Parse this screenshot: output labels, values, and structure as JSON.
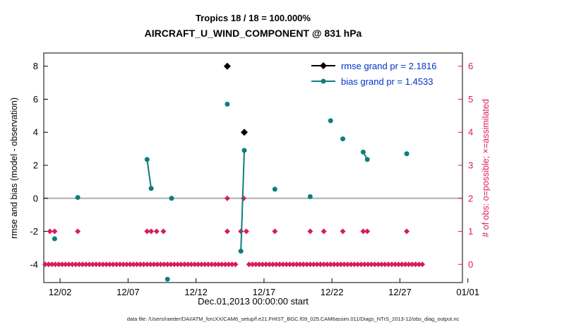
{
  "header": {
    "title": "Tropics 18 / 18 = 100.000%",
    "subtitle": "AIRCRAFT_U_WIND_COMPONENT @ 831 hPa"
  },
  "footer": {
    "data_file": "data file: /Users/raeder/DAI/ATM_forcXX/CAM6_setup/f.e21.FHIST_BGC.f09_025.CAM6assim.011/Diags_NTrS_2013-12/obs_diag_output.nc"
  },
  "chart_data": {
    "type": "scatter",
    "title": "Tropics 18 / 18 = 100.000%",
    "subtitle": "AIRCRAFT_U_WIND_COMPONENT @ 831 hPa",
    "xlabel": "Dec.01,2013 00:00:00 start",
    "ylabel_left": "rmse and bias (model - observation)",
    "ylabel_right": "# of obs: o=possible; ×=assimilated",
    "x_axis": {
      "lim_days": [
        -0.2,
        30.6
      ],
      "tick_days": [
        1,
        6,
        11,
        16,
        21,
        26,
        31
      ],
      "tick_labels": [
        "12/02",
        "12/07",
        "12/12",
        "12/17",
        "12/22",
        "12/27",
        "01/01"
      ]
    },
    "y_axis_left": {
      "lim": [
        -5.1,
        8.8
      ],
      "ticks": [
        -4,
        -2,
        0,
        2,
        4,
        6,
        8
      ]
    },
    "y_axis_right": {
      "ticks": [
        0,
        1,
        2,
        3,
        4,
        5,
        6
      ],
      "left_equiv_rule": "left_value = 2*count - 4"
    },
    "zero_line_y": 0,
    "grid": "off",
    "legend_position": "top-right-inside",
    "colors": {
      "rmse": "#000000",
      "bias": "#0e7d7d",
      "obs": "#d81b60",
      "legend_text": "#0033cc",
      "zero_line": "#b0b0b0",
      "axis": "#000000"
    },
    "series": {
      "rmse": {
        "legend": "rmse grand pr = 2.1816",
        "marker": "diamond",
        "points_day_value": [
          [
            13.3,
            8.0
          ],
          [
            14.55,
            4.0
          ]
        ]
      },
      "bias": {
        "legend": "bias grand pr = 1.4533",
        "marker": "circle",
        "segments_day_value": [
          [
            [
              0.6,
              -2.45
            ]
          ],
          [
            [
              2.3,
              0.05
            ]
          ],
          [
            [
              7.4,
              2.35
            ],
            [
              7.7,
              0.6
            ]
          ],
          [
            [
              8.9,
              -4.9
            ]
          ],
          [
            [
              9.2,
              0.0
            ]
          ],
          [
            [
              13.3,
              5.7
            ]
          ],
          [
            [
              14.3,
              -3.2
            ],
            [
              14.55,
              2.9
            ]
          ],
          [
            [
              16.8,
              0.55
            ]
          ],
          [
            [
              19.4,
              0.1
            ]
          ],
          [
            [
              20.9,
              4.7
            ]
          ],
          [
            [
              21.8,
              3.6
            ]
          ],
          [
            [
              23.3,
              2.8
            ],
            [
              23.6,
              2.35
            ]
          ],
          [
            [
              26.5,
              2.7
            ]
          ]
        ]
      },
      "obs_counts": {
        "count2_days": [
          13.3,
          14.5
        ],
        "count1_days": [
          0.25,
          0.6,
          2.3,
          7.4,
          7.7,
          8.1,
          8.6,
          13.3,
          14.3,
          14.7,
          16.8,
          19.4,
          20.4,
          21.8,
          23.3,
          23.6,
          26.5
        ],
        "count0_span": {
          "start_day": -0.1,
          "end_day": 27.7,
          "step_day": 0.25,
          "gap_days": [
            [
              13.2,
              13.4
            ],
            [
              14.1,
              14.8
            ]
          ]
        }
      }
    }
  }
}
